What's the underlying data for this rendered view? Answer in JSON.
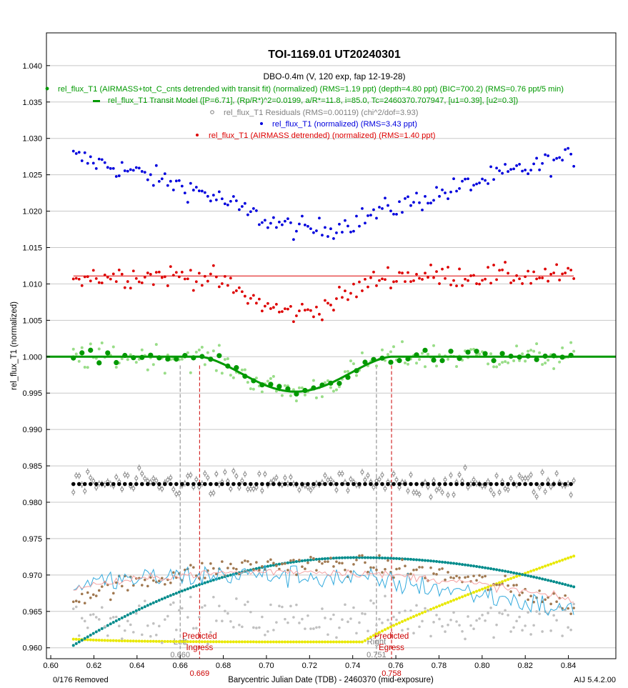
{
  "chart_data": {
    "type": "scatter",
    "title": "TOI-1169.01 UT20240301",
    "subtitle": "DBO-0.4m (V, 120 exp, fap 12-19-28)",
    "xlabel": "Barycentric Julian Date (TDB) - 2460370 (mid-exposure)",
    "ylabel": "rel_flux_T1 (normalized)",
    "xlim": [
      0.598,
      0.862
    ],
    "ylim": [
      0.9585,
      1.0445
    ],
    "x_ticks": [
      0.6,
      0.62,
      0.64,
      0.66,
      0.68,
      0.7,
      0.72,
      0.74,
      0.76,
      0.78,
      0.8,
      0.82,
      0.84
    ],
    "x_tick_labels": [
      "0.60",
      "0.62",
      "0.64",
      "0.66",
      "0.68",
      "0.70",
      "0.72",
      "0.74",
      "0.76",
      "0.78",
      "0.80",
      "0.82",
      "0.84"
    ],
    "y_ticks": [
      0.96,
      0.965,
      0.97,
      0.975,
      0.98,
      0.985,
      0.99,
      0.995,
      1.0,
      1.005,
      1.01,
      1.015,
      1.02,
      1.025,
      1.03,
      1.035,
      1.04
    ],
    "y_tick_labels": [
      "0.960",
      "0.965",
      "0.970",
      "0.975",
      "0.980",
      "0.985",
      "0.990",
      "0.995",
      "1.000",
      "1.005",
      "1.010",
      "1.015",
      "1.020",
      "1.025",
      "1.030",
      "1.035",
      "1.040"
    ],
    "grid": true,
    "legend_placement": "top-center",
    "footer_left": "0/176 Removed",
    "footer_right": "AIJ 5.4.2.00",
    "transit": {
      "tc": 0.707947,
      "t_start": 0.669,
      "t_end": 0.758,
      "depth": 0.0048,
      "baseline": 1.0
    },
    "markers": [
      {
        "name": "Left",
        "x": 0.66,
        "label": "Left",
        "value_label": "0.660",
        "color": "#808080"
      },
      {
        "name": "Right",
        "x": 0.751,
        "label": "Right",
        "value_label": "0.751",
        "color": "#808080"
      },
      {
        "name": "Predicted Ingress",
        "x": 0.669,
        "label": "Predicted",
        "label2": "Ingress",
        "value_label": "0.669",
        "color": "#cc0000"
      },
      {
        "name": "Predicted Egress",
        "x": 0.758,
        "label": "Predicted",
        "label2": "Egress",
        "value_label": "0.758",
        "color": "#cc0000"
      }
    ],
    "series": [
      {
        "name": "rel_flux_T1 (AIRMASS+tot_C_cnts detrended with transit fit) (normalized) (RMS=1.19 ppt) (depth=4.80 ppt) (BIC=700.2) (RMS=0.76 ppt/5 min)",
        "color": "#009900",
        "kind": "detrended",
        "baseline": 1.0,
        "scatter": 0.0013,
        "depth": 0.0048
      },
      {
        "name": "rel_flux_T1 Transit Model ([P=6.71], (Rp/R*)^2=0.0199, a/R*=11.8, i=85.0, Tc=2460370.707947, [u1=0.39], [u2=0.3])",
        "color": "#009900",
        "kind": "model",
        "baseline": 1.0,
        "depth": 0.0048
      },
      {
        "name": "rel_flux_T1 Residuals (RMS=0.00119) (chi^2/dof=3.93)",
        "color": "#808080",
        "kind": "residuals",
        "baseline": 0.9825,
        "scatter": 0.0013
      },
      {
        "name": "rel_flux_T1 (normalized) (RMS=3.43 ppt)",
        "color": "#0000dd",
        "kind": "normalized",
        "baseline": 1.0245,
        "scatter": 0.0011,
        "edge_amp": 0.0053,
        "depth": 0.008
      },
      {
        "name": "rel_flux_T1 (AIRMASS detrended) (normalized) (RMS=1.40 ppt)",
        "color": "#dd0000",
        "kind": "airmass",
        "baseline": 1.0111,
        "scatter": 0.0011,
        "depth": 0.005
      }
    ]
  }
}
